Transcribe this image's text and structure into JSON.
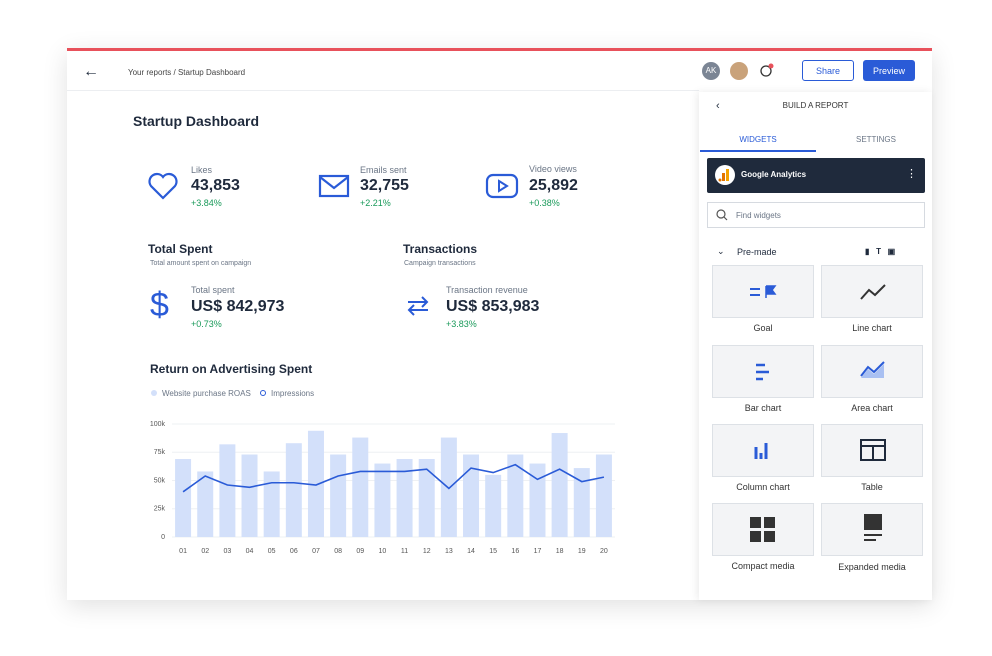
{
  "header": {
    "breadcrumb": "Your reports / Startup Dashboard",
    "avatar": "AK",
    "share": "Share",
    "preview": "Preview"
  },
  "dashboard": {
    "title": "Startup Dashboard",
    "kpis": [
      {
        "label": "Likes",
        "value": "43,853",
        "change": "+3.84%"
      },
      {
        "label": "Emails sent",
        "value": "32,755",
        "change": "+2.21%"
      },
      {
        "label": "Video views",
        "value": "25,892",
        "change": "+0.38%"
      }
    ],
    "sections": [
      {
        "title": "Total Spent",
        "subtitle": "Total amount spent on campaign",
        "label": "Total spent",
        "value": "US$ 842,973",
        "change": "+0.73%"
      },
      {
        "title": "Transactions",
        "subtitle": "Campaign transactions",
        "label": "Transaction revenue",
        "value": "US$ 853,983",
        "change": "+3.83%"
      }
    ]
  },
  "chart_data": {
    "type": "bar",
    "title": "Return on Advertising Spent",
    "categories": [
      "01",
      "02",
      "03",
      "04",
      "05",
      "06",
      "07",
      "08",
      "09",
      "10",
      "11",
      "12",
      "13",
      "14",
      "15",
      "16",
      "17",
      "18",
      "19",
      "20"
    ],
    "series": [
      {
        "name": "Website purchase ROAS",
        "type": "bar",
        "color": "#d3e0fa",
        "values": [
          69000,
          58000,
          82000,
          73000,
          58000,
          83000,
          94000,
          73000,
          88000,
          65000,
          69000,
          69000,
          88000,
          73000,
          55000,
          73000,
          65000,
          92000,
          61000,
          73000
        ]
      },
      {
        "name": "Impressions",
        "type": "line",
        "color": "#2a5bd7",
        "values": [
          40000,
          54000,
          46000,
          44000,
          48000,
          48000,
          46000,
          54000,
          58000,
          58000,
          58000,
          60000,
          43000,
          61000,
          57000,
          64000,
          51000,
          60000,
          49000,
          53000
        ]
      }
    ],
    "ylim": [
      0,
      100000
    ],
    "yticks": [
      0,
      {
        "value": 25000,
        "label": "25k"
      },
      {
        "value": 50000,
        "label": "50k"
      },
      {
        "value": 75000,
        "label": "75k"
      },
      {
        "value": 100000,
        "label": "100k"
      }
    ],
    "grid": true
  },
  "panel": {
    "title": "BUILD A REPORT",
    "tabs": [
      "WIDGETS",
      "SETTINGS"
    ],
    "source": "Google Analytics",
    "search": "Find widgets",
    "group": "Pre-made",
    "widgets": [
      "Goal",
      "Line chart",
      "Bar chart",
      "Area chart",
      "Column chart",
      "Table",
      "Compact media",
      "Expanded media"
    ]
  }
}
